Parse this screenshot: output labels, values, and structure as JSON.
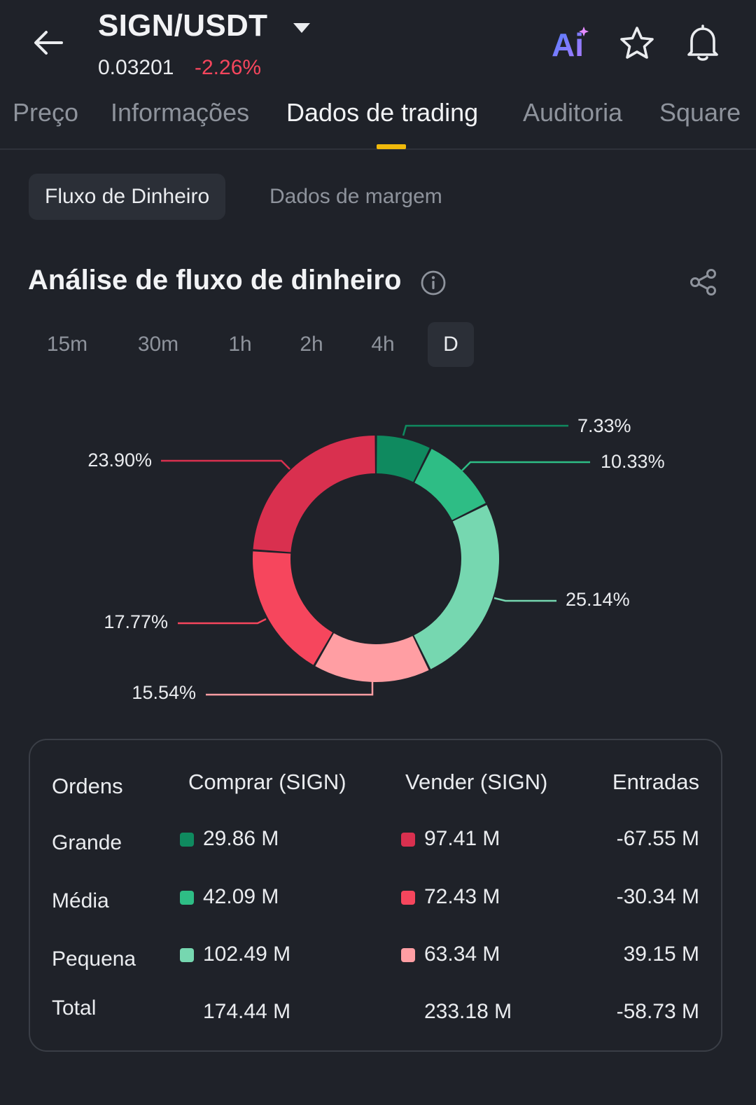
{
  "header": {
    "pair": "SIGN/USDT",
    "price": "0.03201",
    "change": "-2.26%",
    "ai_label": "Ai"
  },
  "tabs": [
    {
      "label": "Preço"
    },
    {
      "label": "Informações"
    },
    {
      "label": "Dados de trading"
    },
    {
      "label": "Auditoria"
    },
    {
      "label": "Square"
    }
  ],
  "subtabs": {
    "active": "Fluxo de Dinheiro",
    "inactive": "Dados de margem"
  },
  "section": {
    "title": "Análise de fluxo de dinheiro"
  },
  "timeframes": [
    "15m",
    "30m",
    "1h",
    "2h",
    "4h",
    "D"
  ],
  "selected_timeframe": "D",
  "colors": {
    "buy_large": "#0f8a5f",
    "buy_medium": "#2ebd85",
    "buy_small": "#76d7b0",
    "sell_large": "#d9304f",
    "sell_medium": "#f6465d",
    "sell_small": "#ff9ea3",
    "negative": "#f6465d",
    "accent": "#f0b90b"
  },
  "chart_data": {
    "type": "pie",
    "variant": "donut",
    "slices": [
      {
        "label": "7.33%",
        "value": 7.33,
        "color": "#0f8a5f"
      },
      {
        "label": "10.33%",
        "value": 10.33,
        "color": "#2ebd85"
      },
      {
        "label": "25.14%",
        "value": 25.14,
        "color": "#76d7b0"
      },
      {
        "label": "15.54%",
        "value": 15.54,
        "color": "#ff9ea3"
      },
      {
        "label": "17.77%",
        "value": 17.77,
        "color": "#f6465d"
      },
      {
        "label": "23.90%",
        "value": 23.9,
        "color": "#d9304f"
      }
    ]
  },
  "table": {
    "headers": [
      "Ordens",
      "Comprar (SIGN)",
      "Vender (SIGN)",
      "Entradas"
    ],
    "rows": [
      {
        "label": "Grande",
        "buy": "29.86 M",
        "sell": "97.41 M",
        "net": "-67.55 M",
        "buy_color": "#0f8a5f",
        "sell_color": "#d9304f"
      },
      {
        "label": "Média",
        "buy": "42.09 M",
        "sell": "72.43 M",
        "net": "-30.34 M",
        "buy_color": "#2ebd85",
        "sell_color": "#f6465d"
      },
      {
        "label": "Pequena",
        "buy": "102.49 M",
        "sell": "63.34 M",
        "net": "39.15 M",
        "buy_color": "#76d7b0",
        "sell_color": "#ff9ea3"
      }
    ],
    "total": {
      "label": "Total",
      "buy": "174.44 M",
      "sell": "233.18 M",
      "net": "-58.73 M"
    }
  }
}
